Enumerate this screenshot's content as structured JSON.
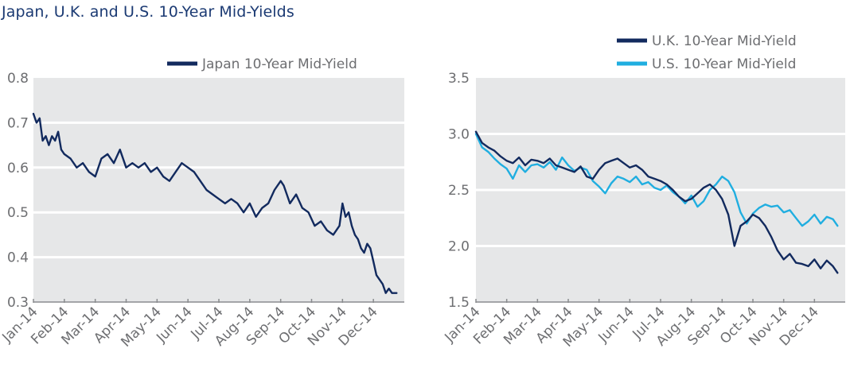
{
  "title": "Japan, U.K. and U.S. 10-Year Mid-Yields",
  "colors": {
    "navy": "#122a5e",
    "cyan": "#20aee0",
    "plot_bg": "#e6e7e8",
    "grid": "#ffffff",
    "tick_text": "#6d6e71"
  },
  "chart_data": [
    {
      "type": "line",
      "title": "",
      "xlabel": "",
      "ylabel": "",
      "ylim": [
        0.3,
        0.8
      ],
      "yticks": [
        "0.8",
        "0.7",
        "0.6",
        "0.5",
        "0.4",
        "0.3"
      ],
      "ytick_values": [
        0.8,
        0.7,
        0.6,
        0.5,
        0.4,
        0.3
      ],
      "xticks": [
        "Jan-14",
        "Feb-14",
        "Mar-14",
        "Apr-14",
        "May-14",
        "Jun-14",
        "Jul-14",
        "Aug-14",
        "Sep-14",
        "Oct-14",
        "Nov-14",
        "Dec-14"
      ],
      "grid": true,
      "legend": "top-right",
      "series": [
        {
          "name": "Japan 10-Year Mid-Yield",
          "color": "#122a5e",
          "x": [
            0,
            0.1,
            0.2,
            0.3,
            0.4,
            0.5,
            0.6,
            0.7,
            0.8,
            0.9,
            1.0,
            1.2,
            1.4,
            1.6,
            1.8,
            2.0,
            2.2,
            2.4,
            2.6,
            2.8,
            3.0,
            3.2,
            3.4,
            3.6,
            3.8,
            4.0,
            4.2,
            4.4,
            4.6,
            4.8,
            5.0,
            5.2,
            5.4,
            5.6,
            5.8,
            6.0,
            6.2,
            6.4,
            6.6,
            6.8,
            7.0,
            7.2,
            7.4,
            7.6,
            7.8,
            8.0,
            8.1,
            8.2,
            8.3,
            8.5,
            8.7,
            8.9,
            9.1,
            9.3,
            9.5,
            9.7,
            9.9,
            10.0,
            10.1,
            10.2,
            10.3,
            10.4,
            10.5,
            10.6,
            10.7,
            10.8,
            10.9,
            11.0,
            11.1,
            11.2,
            11.3,
            11.4,
            11.5,
            11.6,
            11.75
          ],
          "values": [
            0.72,
            0.7,
            0.71,
            0.66,
            0.67,
            0.65,
            0.67,
            0.66,
            0.68,
            0.64,
            0.63,
            0.62,
            0.6,
            0.61,
            0.59,
            0.58,
            0.62,
            0.63,
            0.61,
            0.64,
            0.6,
            0.61,
            0.6,
            0.61,
            0.59,
            0.6,
            0.58,
            0.57,
            0.59,
            0.61,
            0.6,
            0.59,
            0.57,
            0.55,
            0.54,
            0.53,
            0.52,
            0.53,
            0.52,
            0.5,
            0.52,
            0.49,
            0.51,
            0.52,
            0.55,
            0.57,
            0.56,
            0.54,
            0.52,
            0.54,
            0.51,
            0.5,
            0.47,
            0.48,
            0.46,
            0.45,
            0.47,
            0.52,
            0.49,
            0.5,
            0.47,
            0.45,
            0.44,
            0.42,
            0.41,
            0.43,
            0.42,
            0.39,
            0.36,
            0.35,
            0.34,
            0.32,
            0.33,
            0.32,
            0.32
          ]
        }
      ]
    },
    {
      "type": "line",
      "title": "",
      "xlabel": "",
      "ylabel": "",
      "ylim": [
        1.5,
        3.5
      ],
      "yticks": [
        "3.5",
        "3.0",
        "2.5",
        "2.0",
        "1.5"
      ],
      "ytick_values": [
        3.5,
        3.0,
        2.5,
        2.0,
        1.5
      ],
      "xticks": [
        "Jan-14",
        "Feb-14",
        "Mar-14",
        "Apr-14",
        "May-14",
        "Jun-14",
        "Jul-14",
        "Aug-14",
        "Sep-14",
        "Oct-14",
        "Nov-14",
        "Dec-14"
      ],
      "grid": true,
      "legend": "top-right",
      "series": [
        {
          "name": "U.K. 10-Year Mid-Yield",
          "color": "#122a5e",
          "x": [
            0,
            0.2,
            0.4,
            0.6,
            0.8,
            1.0,
            1.2,
            1.4,
            1.6,
            1.8,
            2.0,
            2.2,
            2.4,
            2.6,
            2.8,
            3.0,
            3.2,
            3.4,
            3.6,
            3.8,
            4.0,
            4.2,
            4.4,
            4.6,
            4.8,
            5.0,
            5.2,
            5.4,
            5.6,
            5.8,
            6.0,
            6.2,
            6.4,
            6.6,
            6.8,
            7.0,
            7.2,
            7.4,
            7.6,
            7.8,
            8.0,
            8.2,
            8.4,
            8.6,
            8.8,
            9.0,
            9.2,
            9.4,
            9.6,
            9.8,
            10.0,
            10.2,
            10.4,
            10.6,
            10.8,
            11.0,
            11.2,
            11.4,
            11.6,
            11.75
          ],
          "values": [
            3.02,
            2.92,
            2.88,
            2.85,
            2.8,
            2.76,
            2.74,
            2.79,
            2.72,
            2.77,
            2.76,
            2.74,
            2.78,
            2.72,
            2.7,
            2.68,
            2.66,
            2.71,
            2.62,
            2.6,
            2.68,
            2.74,
            2.76,
            2.78,
            2.74,
            2.7,
            2.72,
            2.68,
            2.62,
            2.6,
            2.58,
            2.55,
            2.5,
            2.44,
            2.4,
            2.42,
            2.47,
            2.52,
            2.55,
            2.5,
            2.42,
            2.28,
            2.0,
            2.18,
            2.22,
            2.28,
            2.25,
            2.18,
            2.08,
            1.96,
            1.88,
            1.93,
            1.85,
            1.84,
            1.82,
            1.88,
            1.8,
            1.87,
            1.82,
            1.76
          ]
        },
        {
          "name": "U.S. 10-Year Mid-Yield",
          "color": "#20aee0",
          "x": [
            0,
            0.2,
            0.4,
            0.6,
            0.8,
            1.0,
            1.2,
            1.4,
            1.6,
            1.8,
            2.0,
            2.2,
            2.4,
            2.6,
            2.8,
            3.0,
            3.2,
            3.4,
            3.6,
            3.8,
            4.0,
            4.2,
            4.4,
            4.6,
            4.8,
            5.0,
            5.2,
            5.4,
            5.6,
            5.8,
            6.0,
            6.2,
            6.4,
            6.6,
            6.8,
            7.0,
            7.2,
            7.4,
            7.6,
            7.8,
            8.0,
            8.2,
            8.4,
            8.6,
            8.8,
            9.0,
            9.2,
            9.4,
            9.6,
            9.8,
            10.0,
            10.2,
            10.4,
            10.6,
            10.8,
            11.0,
            11.2,
            11.4,
            11.6,
            11.75
          ],
          "values": [
            3.0,
            2.88,
            2.84,
            2.78,
            2.73,
            2.69,
            2.6,
            2.72,
            2.66,
            2.72,
            2.73,
            2.7,
            2.75,
            2.68,
            2.79,
            2.72,
            2.67,
            2.7,
            2.68,
            2.58,
            2.53,
            2.47,
            2.56,
            2.62,
            2.6,
            2.57,
            2.62,
            2.55,
            2.57,
            2.52,
            2.5,
            2.54,
            2.48,
            2.44,
            2.38,
            2.45,
            2.35,
            2.4,
            2.5,
            2.55,
            2.62,
            2.58,
            2.48,
            2.3,
            2.2,
            2.29,
            2.34,
            2.37,
            2.35,
            2.36,
            2.3,
            2.32,
            2.25,
            2.18,
            2.22,
            2.28,
            2.2,
            2.26,
            2.24,
            2.18
          ]
        }
      ]
    }
  ]
}
